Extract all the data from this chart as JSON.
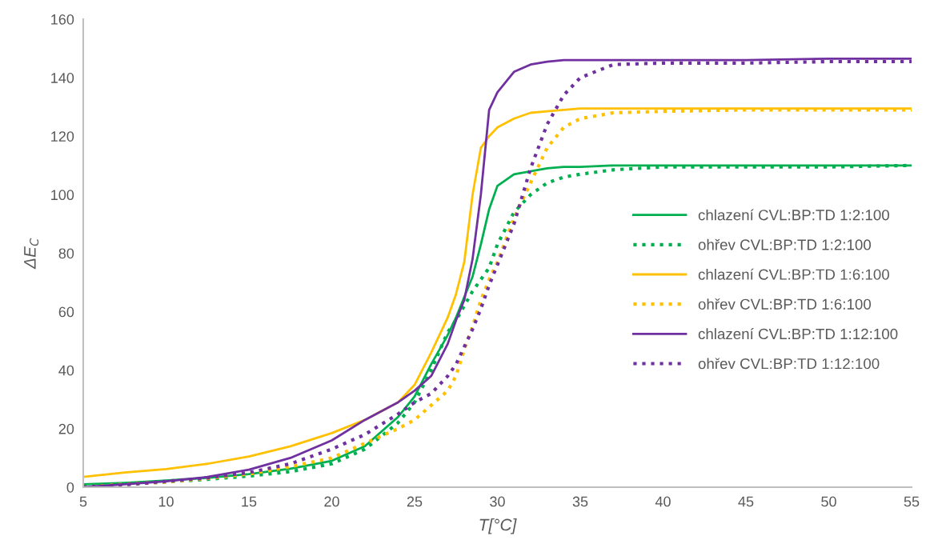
{
  "chart_data": {
    "type": "line",
    "xlabel": "T[°C]",
    "ylabel": "ΔE$_{C}$",
    "xlim": [
      5,
      55
    ],
    "xticks": [
      5,
      10,
      15,
      20,
      25,
      30,
      35,
      40,
      45,
      50,
      55
    ],
    "ylim": [
      0,
      160
    ],
    "yticks": [
      0,
      20,
      40,
      60,
      80,
      100,
      120,
      140,
      160
    ],
    "grid": false,
    "legend": "right",
    "marker": "none",
    "x": [
      5,
      7.5,
      10,
      12.5,
      15,
      17.5,
      20,
      22,
      24,
      25,
      26,
      27,
      27.5,
      28,
      28.5,
      29,
      29.5,
      30,
      31,
      32,
      33,
      34,
      35,
      37,
      40,
      45,
      50,
      55
    ],
    "series": [
      {
        "name": "chlazení CVL:BP:TD 1:2:100",
        "color": "#00b050",
        "line_style": "solid",
        "values": [
          1,
          1.5,
          2.3,
          3.2,
          4.5,
          6.3,
          9,
          14,
          24,
          31,
          42,
          52,
          58,
          65,
          72,
          83,
          95,
          103,
          107,
          108,
          109,
          109.5,
          109.5,
          110,
          110,
          110,
          110,
          110
        ]
      },
      {
        "name": "ohřev CVL:BP:TD 1:2:100",
        "color": "#00b050",
        "line_style": "dotted",
        "values": [
          0.3,
          1,
          1.8,
          2.7,
          3.8,
          5.3,
          8,
          13,
          22,
          29,
          40,
          53,
          57,
          62,
          67,
          71,
          75,
          83,
          94,
          100,
          104,
          106,
          107,
          108.5,
          109.5,
          109.5,
          109.5,
          110
        ]
      },
      {
        "name": "chlazení CVL:BP:TD 1:6:100",
        "color": "#ffc000",
        "line_style": "solid",
        "values": [
          3.5,
          5,
          6.2,
          8,
          10.5,
          14,
          18.5,
          23,
          29,
          35,
          46,
          58,
          66,
          77,
          100,
          116,
          120,
          123,
          126,
          128,
          128.5,
          129,
          129.5,
          129.5,
          129.5,
          129.5,
          129.5,
          129.5
        ]
      },
      {
        "name": "ohřev CVL:BP:TD 1:6:100",
        "color": "#ffc000",
        "line_style": "dotted",
        "values": [
          0,
          1,
          1.8,
          3,
          4.5,
          7,
          10,
          15,
          20,
          23,
          28,
          33,
          38,
          47,
          55,
          64,
          71,
          77,
          92,
          104,
          116,
          123,
          126,
          128,
          128.5,
          129,
          129,
          129
        ]
      },
      {
        "name": "chlazení CVL:BP:TD 1:12:100",
        "color": "#7030a0",
        "line_style": "solid",
        "values": [
          0,
          1,
          2,
          3.5,
          6,
          10,
          16,
          23,
          29,
          33,
          38,
          49,
          57,
          64,
          78,
          100,
          129,
          135,
          142,
          144.5,
          145.5,
          146,
          146,
          146,
          146,
          146,
          146.5,
          146.5
        ]
      },
      {
        "name": "ohřev CVL:BP:TD 1:12:100",
        "color": "#7030a0",
        "line_style": "dotted",
        "values": [
          0,
          0.8,
          2,
          3.2,
          5,
          8,
          13,
          18,
          25,
          29,
          32,
          38,
          42,
          48,
          54,
          61,
          69,
          76,
          90,
          109,
          124,
          134,
          140,
          144.5,
          145,
          145,
          145.5,
          145.5
        ]
      }
    ]
  }
}
